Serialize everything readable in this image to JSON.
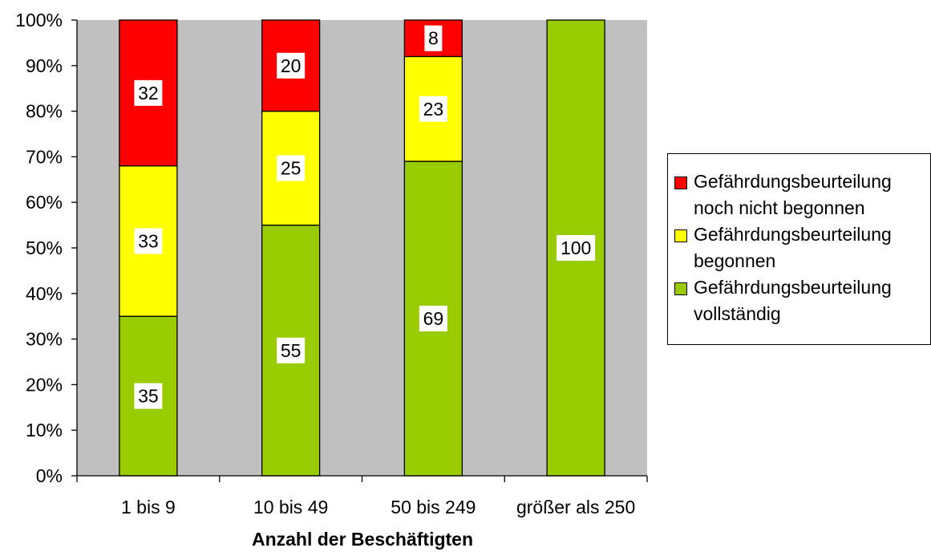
{
  "chart_data": {
    "type": "bar",
    "stacked": true,
    "percent": true,
    "xlabel": "Anzahl der Beschäftigten",
    "ylabel": "",
    "ylim": [
      0,
      100
    ],
    "y_ticks": [
      "0%",
      "10%",
      "20%",
      "30%",
      "40%",
      "50%",
      "60%",
      "70%",
      "80%",
      "90%",
      "100%"
    ],
    "categories": [
      "1 bis 9",
      "10 bis 49",
      "50 bis 249",
      "größer als 250"
    ],
    "series": [
      {
        "name": "Gefährdungsbeurteilung vollständig",
        "color": "#99cc00",
        "values": [
          35,
          55,
          69,
          100
        ]
      },
      {
        "name": "Gefährdungsbeurteilung begonnen",
        "color": "#ffff00",
        "values": [
          33,
          25,
          23,
          0
        ]
      },
      {
        "name": "Gefährdungsbeurteilung noch nicht begonnen",
        "color": "#ff0000",
        "values": [
          32,
          20,
          8,
          0
        ]
      }
    ],
    "legend_position": "right",
    "plot_background": "#c0c0c0",
    "grid": false
  },
  "legend": {
    "items": [
      {
        "line1": "Gefährdungsbeurteilung",
        "line2": "noch nicht begonnen",
        "color": "#ff0000"
      },
      {
        "line1": "Gefährdungsbeurteilung",
        "line2": "begonnen",
        "color": "#ffff00"
      },
      {
        "line1": "Gefährdungsbeurteilung",
        "line2": "vollständig",
        "color": "#99cc00"
      }
    ]
  }
}
